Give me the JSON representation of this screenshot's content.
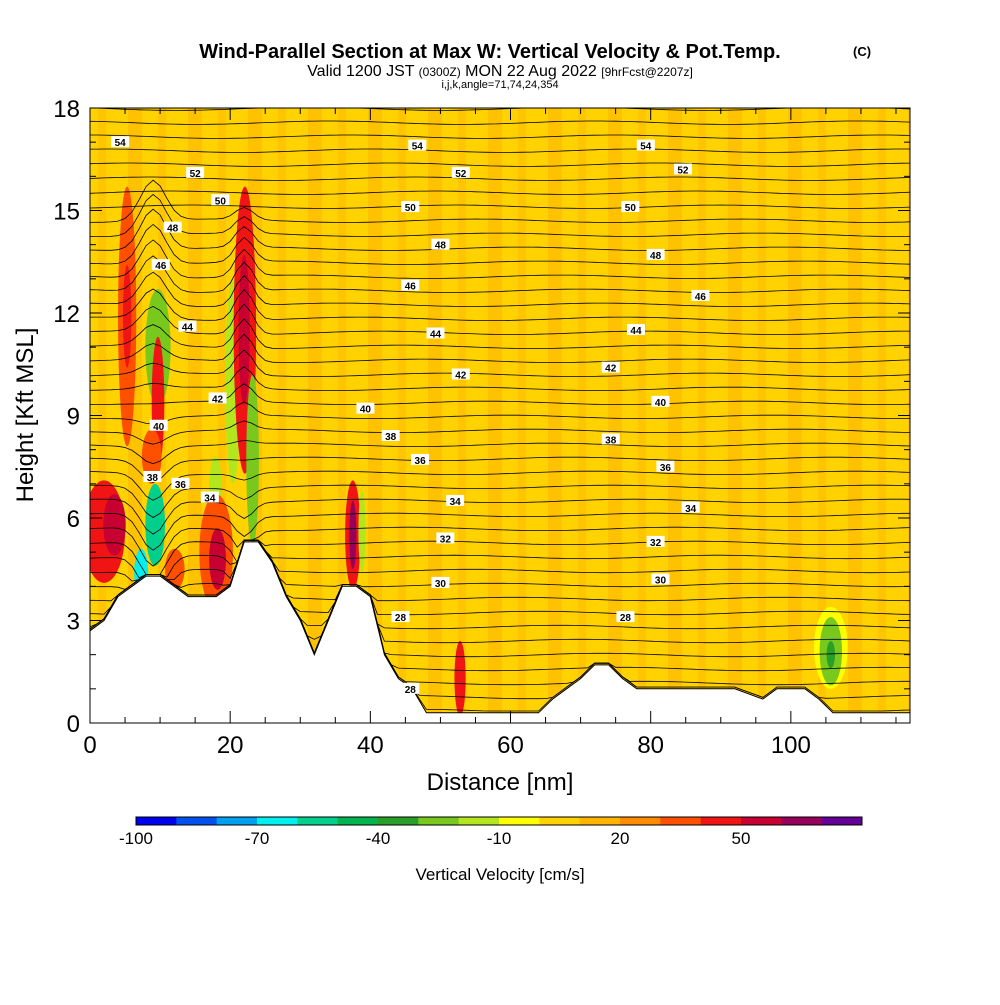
{
  "header": {
    "title": "Wind-Parallel Section at Max W: Vertical Velocity & Pot.Temp.",
    "title_unit": "(C)",
    "valid_prefix": "Valid 1200 JST",
    "valid_utc": "(0300Z)",
    "valid_date": "MON 22 Aug 2022",
    "forecast_info": "[9hrFcst@2207z]",
    "indices": "i,j,k,angle=71,74,24,354"
  },
  "chart_data": {
    "type": "heatmap",
    "title": "Wind-Parallel Section at Max W: Vertical Velocity & Pot.Temp.",
    "xlabel": "Distance [nm]",
    "ylabel": "Height [Kft MSL]",
    "xlim": [
      0,
      117
    ],
    "ylim": [
      0,
      18
    ],
    "xticks": [
      0,
      20,
      40,
      60,
      80,
      100
    ],
    "yticks": [
      0,
      3,
      6,
      9,
      12,
      15,
      18
    ],
    "colorbar": {
      "label": "Vertical Velocity [cm/s]",
      "tick_values": [
        -100,
        -70,
        -40,
        -10,
        20,
        50
      ],
      "tick_labels": [
        "-100",
        "-70",
        "-40",
        "-10",
        "20",
        "50"
      ],
      "levels": [
        -100,
        -90,
        -80,
        -70,
        -60,
        -50,
        -40,
        -30,
        -20,
        -10,
        0,
        10,
        20,
        30,
        40,
        50,
        60,
        70
      ],
      "colors": [
        "#0000f0",
        "#0050f0",
        "#00a0f0",
        "#00f0f0",
        "#00d08c",
        "#00b450",
        "#28a028",
        "#78c81e",
        "#b4e61e",
        "#ffff00",
        "#ffd200",
        "#ffb400",
        "#ff8c00",
        "#ff5000",
        "#f01414",
        "#c80032",
        "#96005a",
        "#640096"
      ]
    },
    "terrain_kft": [
      [
        0,
        2.7
      ],
      [
        2,
        3
      ],
      [
        4,
        3.7
      ],
      [
        6,
        4
      ],
      [
        8,
        4.3
      ],
      [
        10,
        4.3
      ],
      [
        12,
        4
      ],
      [
        14,
        3.7
      ],
      [
        16,
        3.7
      ],
      [
        18,
        3.7
      ],
      [
        20,
        4
      ],
      [
        22,
        5.3
      ],
      [
        24,
        5.3
      ],
      [
        26,
        4.7
      ],
      [
        28,
        3.7
      ],
      [
        30,
        3
      ],
      [
        32,
        2
      ],
      [
        34,
        3
      ],
      [
        36,
        4
      ],
      [
        38,
        4
      ],
      [
        40,
        3.7
      ],
      [
        42,
        2
      ],
      [
        44,
        1.3
      ],
      [
        46,
        1
      ],
      [
        48,
        0.3
      ],
      [
        50,
        0.3
      ],
      [
        54,
        0.3
      ],
      [
        58,
        0.3
      ],
      [
        60,
        0.3
      ],
      [
        64,
        0.3
      ],
      [
        66,
        0.7
      ],
      [
        68,
        1
      ],
      [
        70,
        1.3
      ],
      [
        72,
        1.7
      ],
      [
        74,
        1.7
      ],
      [
        76,
        1.3
      ],
      [
        78,
        1
      ],
      [
        80,
        1
      ],
      [
        84,
        1
      ],
      [
        88,
        1
      ],
      [
        92,
        1
      ],
      [
        96,
        0.7
      ],
      [
        98,
        1
      ],
      [
        102,
        1
      ],
      [
        104,
        0.7
      ],
      [
        106,
        0.3
      ],
      [
        110,
        0.3
      ],
      [
        117,
        0.3
      ]
    ],
    "theta_contour_labels": [
      {
        "text": "54",
        "x": 4.3,
        "y": 17
      },
      {
        "text": "54",
        "x": 46.7,
        "y": 16.9
      },
      {
        "text": "54",
        "x": 79.3,
        "y": 16.9
      },
      {
        "text": "52",
        "x": 15,
        "y": 16.1
      },
      {
        "text": "52",
        "x": 52.9,
        "y": 16.1
      },
      {
        "text": "52",
        "x": 84.6,
        "y": 16.2
      },
      {
        "text": "50",
        "x": 18.6,
        "y": 15.3
      },
      {
        "text": "50",
        "x": 45.7,
        "y": 15.1
      },
      {
        "text": "50",
        "x": 77.1,
        "y": 15.1
      },
      {
        "text": "48",
        "x": 11.8,
        "y": 14.5
      },
      {
        "text": "48",
        "x": 50,
        "y": 14
      },
      {
        "text": "48",
        "x": 80.7,
        "y": 13.7
      },
      {
        "text": "46",
        "x": 10.1,
        "y": 13.4
      },
      {
        "text": "46",
        "x": 45.7,
        "y": 12.8
      },
      {
        "text": "46",
        "x": 87.1,
        "y": 12.5
      },
      {
        "text": "44",
        "x": 13.9,
        "y": 11.6
      },
      {
        "text": "44",
        "x": 49.3,
        "y": 11.4
      },
      {
        "text": "44",
        "x": 77.9,
        "y": 11.5
      },
      {
        "text": "42",
        "x": 18.2,
        "y": 9.5
      },
      {
        "text": "42",
        "x": 52.9,
        "y": 10.2
      },
      {
        "text": "42",
        "x": 74.3,
        "y": 10.4
      },
      {
        "text": "40",
        "x": 9.8,
        "y": 8.7
      },
      {
        "text": "40",
        "x": 39.3,
        "y": 9.2
      },
      {
        "text": "40",
        "x": 81.4,
        "y": 9.4
      },
      {
        "text": "38",
        "x": 8.9,
        "y": 7.2
      },
      {
        "text": "38",
        "x": 42.9,
        "y": 8.4
      },
      {
        "text": "38",
        "x": 74.3,
        "y": 8.3
      },
      {
        "text": "36",
        "x": 12.9,
        "y": 7
      },
      {
        "text": "36",
        "x": 47.1,
        "y": 7.7
      },
      {
        "text": "36",
        "x": 82.1,
        "y": 7.5
      },
      {
        "text": "34",
        "x": 17.1,
        "y": 6.6
      },
      {
        "text": "34",
        "x": 52.1,
        "y": 6.5
      },
      {
        "text": "34",
        "x": 85.7,
        "y": 6.3
      },
      {
        "text": "32",
        "x": 50.7,
        "y": 5.4
      },
      {
        "text": "32",
        "x": 80.7,
        "y": 5.3
      },
      {
        "text": "30",
        "x": 50,
        "y": 4.1
      },
      {
        "text": "30",
        "x": 81.4,
        "y": 4.2
      },
      {
        "text": "28",
        "x": 44.3,
        "y": 3.1
      },
      {
        "text": "28",
        "x": 76.4,
        "y": 3.1
      },
      {
        "text": "28",
        "x": 45.7,
        "y": 1
      }
    ],
    "velocity_cells": [
      {
        "x": 2,
        "y": 5.6,
        "rx": 3,
        "ry": 1.5,
        "w": 40
      },
      {
        "x": 3.5,
        "y": 5.8,
        "rx": 1.6,
        "ry": 0.9,
        "w": 50
      },
      {
        "x": 5.3,
        "y": 11.9,
        "rx": 1.3,
        "ry": 3.8,
        "w": 30
      },
      {
        "x": 5.3,
        "y": 11.9,
        "rx": 0.6,
        "ry": 1.5,
        "w": 40
      },
      {
        "x": 9.7,
        "y": 11,
        "rx": 1.8,
        "ry": 1.7,
        "w": -30
      },
      {
        "x": 9.7,
        "y": 9.4,
        "rx": 0.9,
        "ry": 1.9,
        "w": 40
      },
      {
        "x": 8.8,
        "y": 7.8,
        "rx": 1.4,
        "ry": 0.8,
        "w": 30
      },
      {
        "x": 9.3,
        "y": 5.8,
        "rx": 1.4,
        "ry": 1.2,
        "w": -60
      },
      {
        "x": 7.3,
        "y": 4.4,
        "rx": 1,
        "ry": 0.7,
        "w": -70
      },
      {
        "x": 12.1,
        "y": 4.5,
        "rx": 1.4,
        "ry": 0.6,
        "w": 30
      },
      {
        "x": 17.9,
        "y": 6.9,
        "rx": 0.9,
        "ry": 0.9,
        "w": -20
      },
      {
        "x": 18,
        "y": 5,
        "rx": 2.4,
        "ry": 1.7,
        "w": 30
      },
      {
        "x": 18.2,
        "y": 4.8,
        "rx": 1.2,
        "ry": 0.9,
        "w": 50
      },
      {
        "x": 20.4,
        "y": 10,
        "rx": 1.1,
        "ry": 3,
        "w": -20
      },
      {
        "x": 22.1,
        "y": 11.5,
        "rx": 1.6,
        "ry": 4.2,
        "w": 40
      },
      {
        "x": 22,
        "y": 11.5,
        "rx": 0.8,
        "ry": 2.2,
        "w": 50
      },
      {
        "x": 23.2,
        "y": 7.7,
        "rx": 0.9,
        "ry": 2.5,
        "w": -30
      },
      {
        "x": 37.5,
        "y": 5.5,
        "rx": 1.1,
        "ry": 1.6,
        "w": 40
      },
      {
        "x": 37.5,
        "y": 5.5,
        "rx": 0.5,
        "ry": 1,
        "w": 60
      },
      {
        "x": 38.8,
        "y": 5.6,
        "rx": 0.5,
        "ry": 1.2,
        "w": -20
      },
      {
        "x": 52.8,
        "y": 1.3,
        "rx": 0.8,
        "ry": 1.1,
        "w": 40
      },
      {
        "x": 105.7,
        "y": 2.2,
        "rx": 2.4,
        "ry": 1.2,
        "w": -10
      },
      {
        "x": 105.7,
        "y": 2.1,
        "rx": 1.6,
        "ry": 1,
        "w": -30
      },
      {
        "x": 105.7,
        "y": 2,
        "rx": 0.6,
        "ry": 0.4,
        "w": -40
      }
    ]
  }
}
